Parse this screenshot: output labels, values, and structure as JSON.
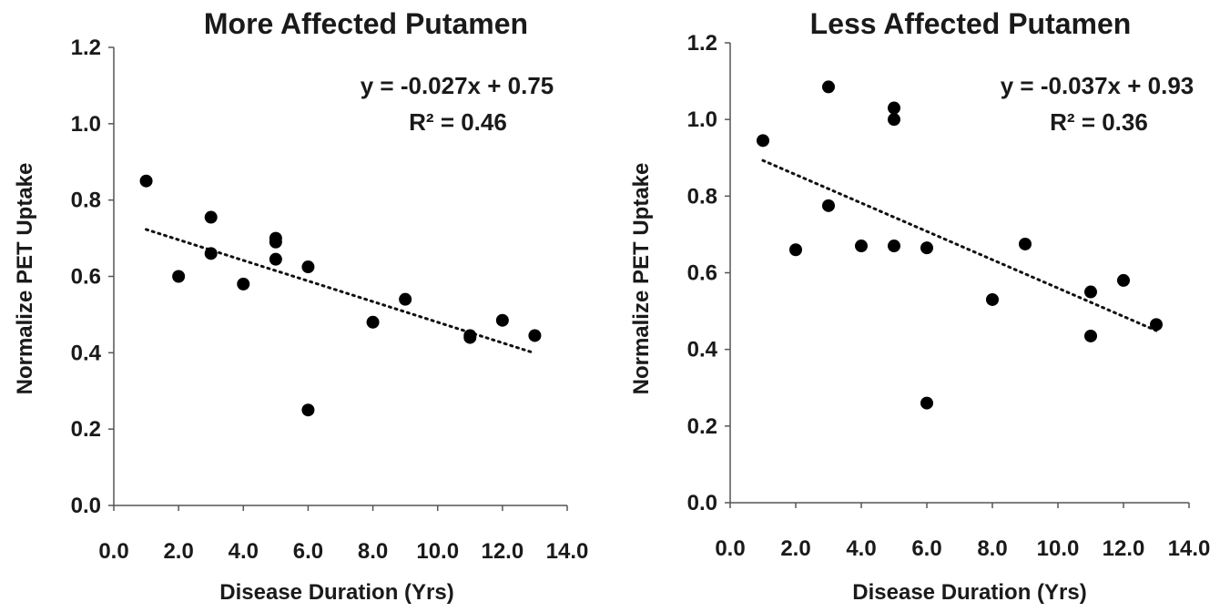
{
  "chart_data": [
    {
      "type": "scatter",
      "title": "More Affected Putamen",
      "xlabel": "Disease Duration (Yrs)",
      "ylabel": "Normalize PET Uptake",
      "xlim": [
        0,
        14
      ],
      "ylim": [
        0,
        1.2
      ],
      "xticks": [
        "0.0",
        "2.0",
        "4.0",
        "6.0",
        "8.0",
        "10.0",
        "12.0",
        "14.0"
      ],
      "yticks": [
        "0.0",
        "0.2",
        "0.4",
        "0.6",
        "0.8",
        "1.0",
        "1.2"
      ],
      "points": [
        {
          "x": 1,
          "y": 0.85
        },
        {
          "x": 2,
          "y": 0.6
        },
        {
          "x": 3,
          "y": 0.755
        },
        {
          "x": 3,
          "y": 0.66
        },
        {
          "x": 4,
          "y": 0.58
        },
        {
          "x": 5,
          "y": 0.7
        },
        {
          "x": 5,
          "y": 0.69
        },
        {
          "x": 5,
          "y": 0.645
        },
        {
          "x": 6,
          "y": 0.625
        },
        {
          "x": 6,
          "y": 0.25
        },
        {
          "x": 8,
          "y": 0.48
        },
        {
          "x": 9,
          "y": 0.54
        },
        {
          "x": 11,
          "y": 0.445
        },
        {
          "x": 11,
          "y": 0.44
        },
        {
          "x": 12,
          "y": 0.485
        },
        {
          "x": 13,
          "y": 0.445
        }
      ],
      "trendline": {
        "slope": -0.027,
        "intercept": 0.75,
        "x_range": [
          1,
          13
        ]
      },
      "equation": "y = -0.027x + 0.75",
      "r_squared": "R² = 0.46"
    },
    {
      "type": "scatter",
      "title": "Less Affected Putamen",
      "xlabel": "Disease Duration (Yrs)",
      "ylabel": "Normalize PET Uptake",
      "xlim": [
        0,
        14
      ],
      "ylim": [
        0,
        1.2
      ],
      "xticks": [
        "0.0",
        "2.0",
        "4.0",
        "6.0",
        "8.0",
        "10.0",
        "12.0",
        "14.0"
      ],
      "yticks": [
        "0.0",
        "0.2",
        "0.4",
        "0.6",
        "0.8",
        "1.0",
        "1.2"
      ],
      "points": [
        {
          "x": 1,
          "y": 0.945
        },
        {
          "x": 2,
          "y": 0.66
        },
        {
          "x": 3,
          "y": 1.085
        },
        {
          "x": 3,
          "y": 0.775
        },
        {
          "x": 4,
          "y": 0.67
        },
        {
          "x": 5,
          "y": 1.03
        },
        {
          "x": 5,
          "y": 1.0
        },
        {
          "x": 5,
          "y": 0.67
        },
        {
          "x": 6,
          "y": 0.665
        },
        {
          "x": 6,
          "y": 0.26
        },
        {
          "x": 8,
          "y": 0.53
        },
        {
          "x": 9,
          "y": 0.675
        },
        {
          "x": 11,
          "y": 0.55
        },
        {
          "x": 11,
          "y": 0.435
        },
        {
          "x": 12,
          "y": 0.58
        },
        {
          "x": 13,
          "y": 0.465
        }
      ],
      "trendline": {
        "slope": -0.037,
        "intercept": 0.93,
        "x_range": [
          1,
          13
        ]
      },
      "equation": "y = -0.037x + 0.93",
      "r_squared": "R² = 0.36"
    }
  ]
}
